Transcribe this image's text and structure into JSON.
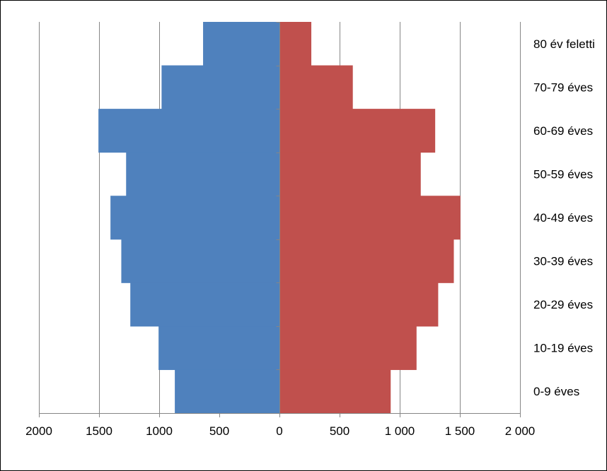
{
  "chart_data": {
    "type": "bar",
    "orientation": "horizontal",
    "layout": "population-pyramid",
    "categories": [
      "0-9 éves",
      "10-19 éves",
      "20-29 éves",
      "30-39 éves",
      "40-49 éves",
      "50-59 éves",
      "60-69 éves",
      "70-79 éves",
      "80 év feletti"
    ],
    "series": [
      {
        "values": [
          870,
          1005,
          1240,
          1315,
          1405,
          1275,
          1505,
          980,
          635
        ],
        "color": "#4f81bd",
        "side": "left"
      },
      {
        "values": [
          925,
          1140,
          1320,
          1450,
          1505,
          1175,
          1295,
          610,
          265
        ],
        "color": "#c0504d",
        "side": "right"
      }
    ],
    "xlim": [
      -2000,
      2000
    ],
    "x_ticks": [
      -2000,
      -1500,
      -1000,
      -500,
      0,
      500,
      1000,
      1500,
      2000
    ],
    "x_tick_labels": [
      "2000",
      "1500",
      "1000",
      "500",
      "0",
      "500",
      "1 000",
      "1 500",
      "2 000"
    ],
    "grid": true,
    "category_axis_position": "right",
    "xlabel": "",
    "ylabel": "",
    "title": ""
  }
}
